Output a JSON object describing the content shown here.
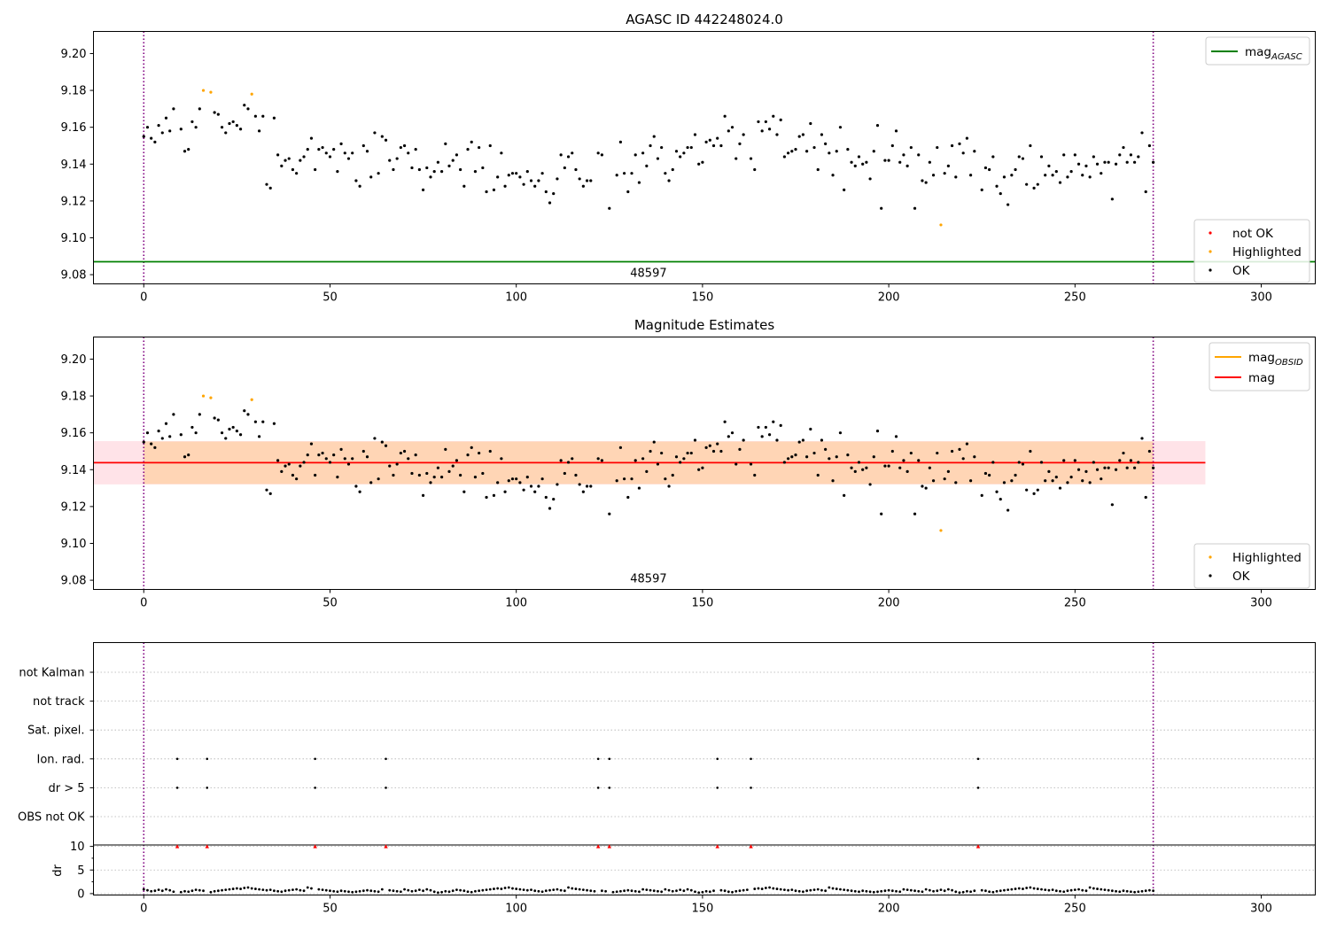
{
  "chart_data": [
    {
      "type": "scatter",
      "title": "AGASC ID 442248024.0",
      "xlim": [
        -13.5,
        314.5
      ],
      "ylim": [
        9.075,
        9.212
      ],
      "xticks": [
        0,
        50,
        100,
        150,
        200,
        250,
        300
      ],
      "yticks": [
        9.08,
        9.1,
        9.12,
        9.14,
        9.16,
        9.18,
        9.2
      ],
      "vlines": [
        0,
        271
      ],
      "hline": {
        "name": "mag",
        "sub": "AGASC",
        "value": 9.087,
        "color": "#008000"
      },
      "obsid_label": {
        "text": "48597",
        "x": 135.5
      },
      "legend_lines": [
        {
          "label": "mag",
          "sub": "AGASC",
          "color": "#008000"
        }
      ],
      "legend_points": [
        {
          "label": "not OK",
          "color": "#ff0000"
        },
        {
          "label": "Highlighted",
          "color": "#ffa500"
        },
        {
          "label": "OK",
          "color": "#000000"
        }
      ],
      "highlighted": [
        [
          16,
          9.18
        ],
        [
          18,
          9.179
        ],
        [
          29,
          9.178
        ],
        [
          214,
          9.107
        ]
      ],
      "ok": [
        [
          0,
          9.155
        ],
        [
          1,
          9.16
        ],
        [
          2,
          9.154
        ],
        [
          3,
          9.152
        ],
        [
          4,
          9.161
        ],
        [
          5,
          9.157
        ],
        [
          6,
          9.165
        ],
        [
          7,
          9.158
        ],
        [
          8,
          9.17
        ],
        [
          10,
          9.159
        ],
        [
          11,
          9.147
        ],
        [
          12,
          9.148
        ],
        [
          13,
          9.163
        ],
        [
          14,
          9.16
        ],
        [
          15,
          9.17
        ],
        [
          19,
          9.168
        ],
        [
          20,
          9.167
        ],
        [
          21,
          9.16
        ],
        [
          22,
          9.157
        ],
        [
          23,
          9.162
        ],
        [
          24,
          9.163
        ],
        [
          25,
          9.161
        ],
        [
          26,
          9.159
        ],
        [
          27,
          9.172
        ],
        [
          28,
          9.17
        ],
        [
          30,
          9.166
        ],
        [
          31,
          9.158
        ],
        [
          32,
          9.166
        ],
        [
          33,
          9.129
        ],
        [
          34,
          9.127
        ],
        [
          35,
          9.165
        ],
        [
          36,
          9.145
        ],
        [
          37,
          9.139
        ],
        [
          38,
          9.142
        ],
        [
          39,
          9.143
        ],
        [
          40,
          9.137
        ],
        [
          41,
          9.135
        ],
        [
          42,
          9.142
        ],
        [
          43,
          9.144
        ],
        [
          44,
          9.148
        ],
        [
          45,
          9.154
        ],
        [
          46,
          9.137
        ],
        [
          47,
          9.148
        ],
        [
          48,
          9.149
        ],
        [
          49,
          9.146
        ],
        [
          50,
          9.144
        ],
        [
          51,
          9.148
        ],
        [
          52,
          9.136
        ],
        [
          53,
          9.151
        ],
        [
          54,
          9.146
        ],
        [
          55,
          9.143
        ],
        [
          56,
          9.146
        ],
        [
          57,
          9.131
        ],
        [
          58,
          9.128
        ],
        [
          59,
          9.15
        ],
        [
          60,
          9.147
        ],
        [
          61,
          9.133
        ],
        [
          62,
          9.157
        ],
        [
          63,
          9.135
        ],
        [
          64,
          9.155
        ],
        [
          65,
          9.153
        ],
        [
          66,
          9.142
        ],
        [
          67,
          9.137
        ],
        [
          68,
          9.143
        ],
        [
          69,
          9.149
        ],
        [
          70,
          9.15
        ],
        [
          71,
          9.146
        ],
        [
          72,
          9.138
        ],
        [
          73,
          9.148
        ],
        [
          74,
          9.137
        ],
        [
          75,
          9.126
        ],
        [
          76,
          9.138
        ],
        [
          77,
          9.133
        ],
        [
          78,
          9.136
        ],
        [
          79,
          9.141
        ],
        [
          80,
          9.136
        ],
        [
          81,
          9.151
        ],
        [
          82,
          9.139
        ],
        [
          83,
          9.142
        ],
        [
          84,
          9.145
        ],
        [
          85,
          9.137
        ],
        [
          86,
          9.128
        ],
        [
          87,
          9.148
        ],
        [
          88,
          9.152
        ],
        [
          89,
          9.136
        ],
        [
          90,
          9.149
        ],
        [
          91,
          9.138
        ],
        [
          92,
          9.125
        ],
        [
          93,
          9.15
        ],
        [
          94,
          9.126
        ],
        [
          95,
          9.133
        ],
        [
          96,
          9.146
        ],
        [
          97,
          9.128
        ],
        [
          98,
          9.134
        ],
        [
          99,
          9.135
        ],
        [
          100,
          9.135
        ],
        [
          101,
          9.133
        ],
        [
          102,
          9.129
        ],
        [
          103,
          9.136
        ],
        [
          104,
          9.131
        ],
        [
          105,
          9.128
        ],
        [
          106,
          9.131
        ],
        [
          107,
          9.135
        ],
        [
          108,
          9.125
        ],
        [
          109,
          9.119
        ],
        [
          110,
          9.124
        ],
        [
          111,
          9.132
        ],
        [
          112,
          9.145
        ],
        [
          113,
          9.138
        ],
        [
          114,
          9.144
        ],
        [
          115,
          9.146
        ],
        [
          116,
          9.137
        ],
        [
          117,
          9.132
        ],
        [
          118,
          9.128
        ],
        [
          119,
          9.131
        ],
        [
          120,
          9.131
        ],
        [
          122,
          9.146
        ],
        [
          123,
          9.145
        ],
        [
          125,
          9.116
        ],
        [
          127,
          9.134
        ],
        [
          128,
          9.152
        ],
        [
          129,
          9.135
        ],
        [
          130,
          9.125
        ],
        [
          131,
          9.135
        ],
        [
          132,
          9.145
        ],
        [
          133,
          9.13
        ],
        [
          134,
          9.146
        ],
        [
          135,
          9.139
        ],
        [
          136,
          9.15
        ],
        [
          137,
          9.155
        ],
        [
          138,
          9.143
        ],
        [
          139,
          9.149
        ],
        [
          140,
          9.135
        ],
        [
          141,
          9.131
        ],
        [
          142,
          9.137
        ],
        [
          143,
          9.147
        ],
        [
          144,
          9.144
        ],
        [
          145,
          9.146
        ],
        [
          146,
          9.149
        ],
        [
          147,
          9.149
        ],
        [
          148,
          9.156
        ],
        [
          149,
          9.14
        ],
        [
          150,
          9.141
        ],
        [
          151,
          9.152
        ],
        [
          152,
          9.153
        ],
        [
          153,
          9.15
        ],
        [
          154,
          9.154
        ],
        [
          155,
          9.15
        ],
        [
          156,
          9.166
        ],
        [
          157,
          9.158
        ],
        [
          158,
          9.16
        ],
        [
          159,
          9.143
        ],
        [
          160,
          9.151
        ],
        [
          161,
          9.156
        ],
        [
          163,
          9.143
        ],
        [
          164,
          9.137
        ],
        [
          165,
          9.163
        ],
        [
          166,
          9.158
        ],
        [
          167,
          9.163
        ],
        [
          168,
          9.159
        ],
        [
          169,
          9.166
        ],
        [
          170,
          9.156
        ],
        [
          171,
          9.164
        ],
        [
          172,
          9.144
        ],
        [
          173,
          9.146
        ],
        [
          174,
          9.147
        ],
        [
          175,
          9.148
        ],
        [
          176,
          9.155
        ],
        [
          177,
          9.156
        ],
        [
          178,
          9.147
        ],
        [
          179,
          9.162
        ],
        [
          180,
          9.149
        ],
        [
          181,
          9.137
        ],
        [
          182,
          9.156
        ],
        [
          183,
          9.151
        ],
        [
          184,
          9.146
        ],
        [
          185,
          9.134
        ],
        [
          186,
          9.147
        ],
        [
          187,
          9.16
        ],
        [
          188,
          9.126
        ],
        [
          189,
          9.148
        ],
        [
          190,
          9.141
        ],
        [
          191,
          9.139
        ],
        [
          192,
          9.144
        ],
        [
          193,
          9.14
        ],
        [
          194,
          9.141
        ],
        [
          195,
          9.132
        ],
        [
          196,
          9.147
        ],
        [
          197,
          9.161
        ],
        [
          198,
          9.116
        ],
        [
          199,
          9.142
        ],
        [
          200,
          9.142
        ],
        [
          201,
          9.15
        ],
        [
          202,
          9.158
        ],
        [
          203,
          9.141
        ],
        [
          204,
          9.145
        ],
        [
          205,
          9.139
        ],
        [
          206,
          9.149
        ],
        [
          207,
          9.116
        ],
        [
          208,
          9.145
        ],
        [
          209,
          9.131
        ],
        [
          210,
          9.13
        ],
        [
          211,
          9.141
        ],
        [
          212,
          9.134
        ],
        [
          213,
          9.149
        ],
        [
          215,
          9.135
        ],
        [
          216,
          9.139
        ],
        [
          217,
          9.15
        ],
        [
          218,
          9.133
        ],
        [
          219,
          9.151
        ],
        [
          220,
          9.146
        ],
        [
          221,
          9.154
        ],
        [
          222,
          9.134
        ],
        [
          223,
          9.147
        ],
        [
          225,
          9.126
        ],
        [
          226,
          9.138
        ],
        [
          227,
          9.137
        ],
        [
          228,
          9.144
        ],
        [
          229,
          9.128
        ],
        [
          230,
          9.124
        ],
        [
          231,
          9.133
        ],
        [
          232,
          9.118
        ],
        [
          233,
          9.134
        ],
        [
          234,
          9.137
        ],
        [
          235,
          9.144
        ],
        [
          236,
          9.143
        ],
        [
          237,
          9.129
        ],
        [
          238,
          9.15
        ],
        [
          239,
          9.127
        ],
        [
          240,
          9.129
        ],
        [
          241,
          9.144
        ],
        [
          242,
          9.134
        ],
        [
          243,
          9.139
        ],
        [
          244,
          9.134
        ],
        [
          245,
          9.136
        ],
        [
          246,
          9.13
        ],
        [
          247,
          9.145
        ],
        [
          248,
          9.133
        ],
        [
          249,
          9.136
        ],
        [
          250,
          9.145
        ],
        [
          251,
          9.14
        ],
        [
          252,
          9.134
        ],
        [
          253,
          9.139
        ],
        [
          254,
          9.133
        ],
        [
          255,
          9.144
        ],
        [
          256,
          9.14
        ],
        [
          257,
          9.135
        ],
        [
          258,
          9.141
        ],
        [
          259,
          9.141
        ],
        [
          260,
          9.121
        ],
        [
          261,
          9.14
        ],
        [
          262,
          9.145
        ],
        [
          263,
          9.149
        ],
        [
          264,
          9.141
        ],
        [
          265,
          9.145
        ],
        [
          266,
          9.141
        ],
        [
          267,
          9.144
        ],
        [
          268,
          9.157
        ],
        [
          269,
          9.125
        ],
        [
          270,
          9.15
        ],
        [
          271,
          9.141
        ]
      ]
    },
    {
      "type": "scatter",
      "title": "Magnitude Estimates",
      "xlim": [
        -13.5,
        314.5
      ],
      "ylim": [
        9.075,
        9.212
      ],
      "xticks": [
        0,
        50,
        100,
        150,
        200,
        250,
        300
      ],
      "yticks": [
        9.08,
        9.1,
        9.12,
        9.14,
        9.16,
        9.18,
        9.2
      ],
      "vlines": [
        0,
        271
      ],
      "mag_line": {
        "value": 9.1438,
        "x_range": [
          -13.5,
          285
        ],
        "color": "#ff0000"
      },
      "mag_band": {
        "y_range": [
          9.132,
          9.1555
        ],
        "x_range": [
          -13.5,
          285
        ],
        "color": "#ffc0cb"
      },
      "obsid_band": {
        "y_range": [
          9.1322,
          9.1553
        ],
        "x_range": [
          0,
          271
        ],
        "color": "#ffa500"
      },
      "obsid_label": {
        "text": "48597",
        "x": 135.5
      },
      "legend_lines": [
        {
          "label": "mag",
          "sub": "OBSID",
          "color": "#ffa500"
        },
        {
          "label": "mag",
          "sub": "",
          "color": "#ff0000"
        }
      ],
      "legend_points": [
        {
          "label": "Highlighted",
          "color": "#ffa500"
        },
        {
          "label": "OK",
          "color": "#000000"
        }
      ]
    },
    {
      "type": "scatter",
      "title": "",
      "xlim": [
        -13.5,
        314.5
      ],
      "xticks": [
        0,
        50,
        100,
        150,
        200,
        250,
        300
      ],
      "vlines": [
        0,
        271
      ],
      "flag_rows": [
        "not Kalman",
        "not track",
        "Sat. pixel.",
        "Ion. rad.",
        "dr > 5",
        "OBS not OK"
      ],
      "flag_points": {
        "Ion. rad.": [
          9,
          17,
          46,
          65,
          122,
          125,
          154,
          163,
          224
        ],
        "dr > 5": [
          9,
          17,
          46,
          65,
          122,
          125,
          154,
          163,
          224
        ]
      }
    },
    {
      "type": "scatter",
      "title": "",
      "ylabel": "dr",
      "xlim": [
        -13.5,
        314.5
      ],
      "ylim": [
        -0.3,
        10.3
      ],
      "xticks": [
        0,
        50,
        100,
        150,
        200,
        250,
        300
      ],
      "yticks": [
        0,
        5,
        10
      ],
      "clipped_points": [
        9,
        17,
        46,
        65,
        122,
        125,
        154,
        163,
        224
      ],
      "clipped_value": 10,
      "dr_baseline": [
        0.9,
        0.7,
        0.5,
        0.6,
        0.8,
        0.6,
        0.9,
        0.7,
        0.4,
        0.2,
        0.3,
        0.5,
        0.4,
        0.6,
        0.8,
        0.7,
        0.6,
        0.4,
        0.3,
        0.5,
        0.6,
        0.7,
        0.8,
        0.9,
        1.0,
        1.1,
        1.0,
        1.2,
        1.3,
        1.1,
        1.0,
        0.9,
        0.8,
        0.7,
        0.8,
        0.6,
        0.5,
        0.4,
        0.6,
        0.7,
        0.8,
        0.9,
        0.7,
        0.6,
        1.3,
        1.1,
        1.0,
        0.9,
        0.8,
        0.7,
        0.6,
        0.5,
        0.4,
        0.6,
        0.5,
        0.4,
        0.3,
        0.4,
        0.5,
        0.6,
        0.7,
        0.6,
        0.5,
        0.4,
        0.9,
        0.8,
        0.7,
        0.6,
        0.5,
        0.4
      ]
    }
  ]
}
